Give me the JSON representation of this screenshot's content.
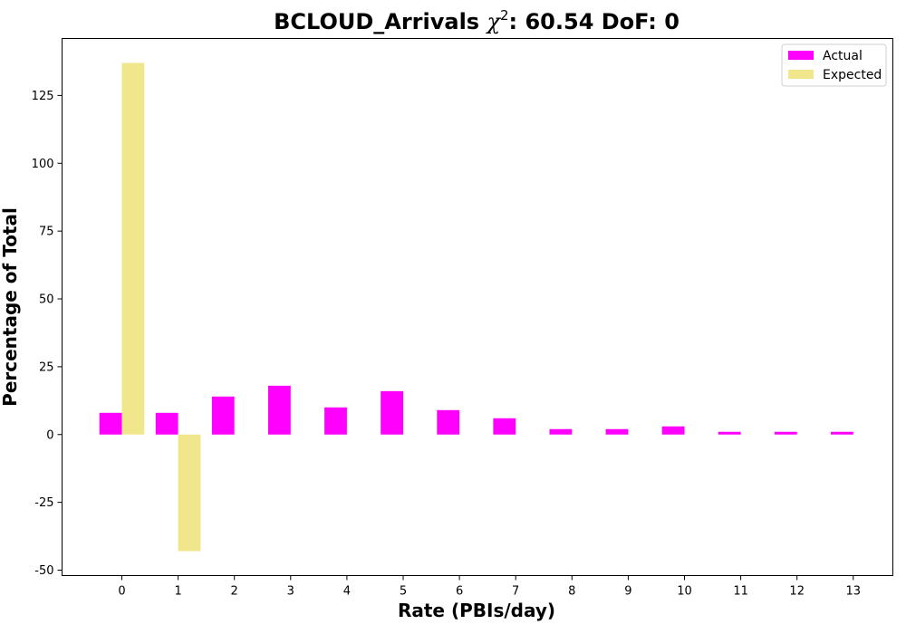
{
  "chart_data": {
    "type": "bar",
    "title_prefix": "BCLOUD_Arrivals ",
    "title_chi": "χ",
    "title_sup": "2",
    "title_suffix": ": 60.54 DoF: 0",
    "xlabel": "Rate (PBIs/day)",
    "ylabel": "Percentage of Total",
    "categories": [
      "0",
      "1",
      "2",
      "3",
      "4",
      "5",
      "6",
      "7",
      "8",
      "9",
      "10",
      "11",
      "12",
      "13"
    ],
    "series": [
      {
        "name": "Actual",
        "color": "#ff00ff",
        "values": [
          8,
          8,
          14,
          18,
          10,
          16,
          9,
          6,
          2,
          2,
          3,
          1,
          1,
          1
        ]
      },
      {
        "name": "Expected",
        "color": "#f0e68c",
        "values": [
          137,
          -43,
          0,
          0,
          0,
          0,
          0,
          0,
          0,
          0,
          0,
          0,
          0,
          0
        ]
      }
    ],
    "ylim": [
      -52,
      146
    ],
    "yticks": [
      -50,
      -25,
      0,
      25,
      50,
      75,
      100,
      125
    ],
    "grid": false,
    "legend_position": "top-right"
  }
}
